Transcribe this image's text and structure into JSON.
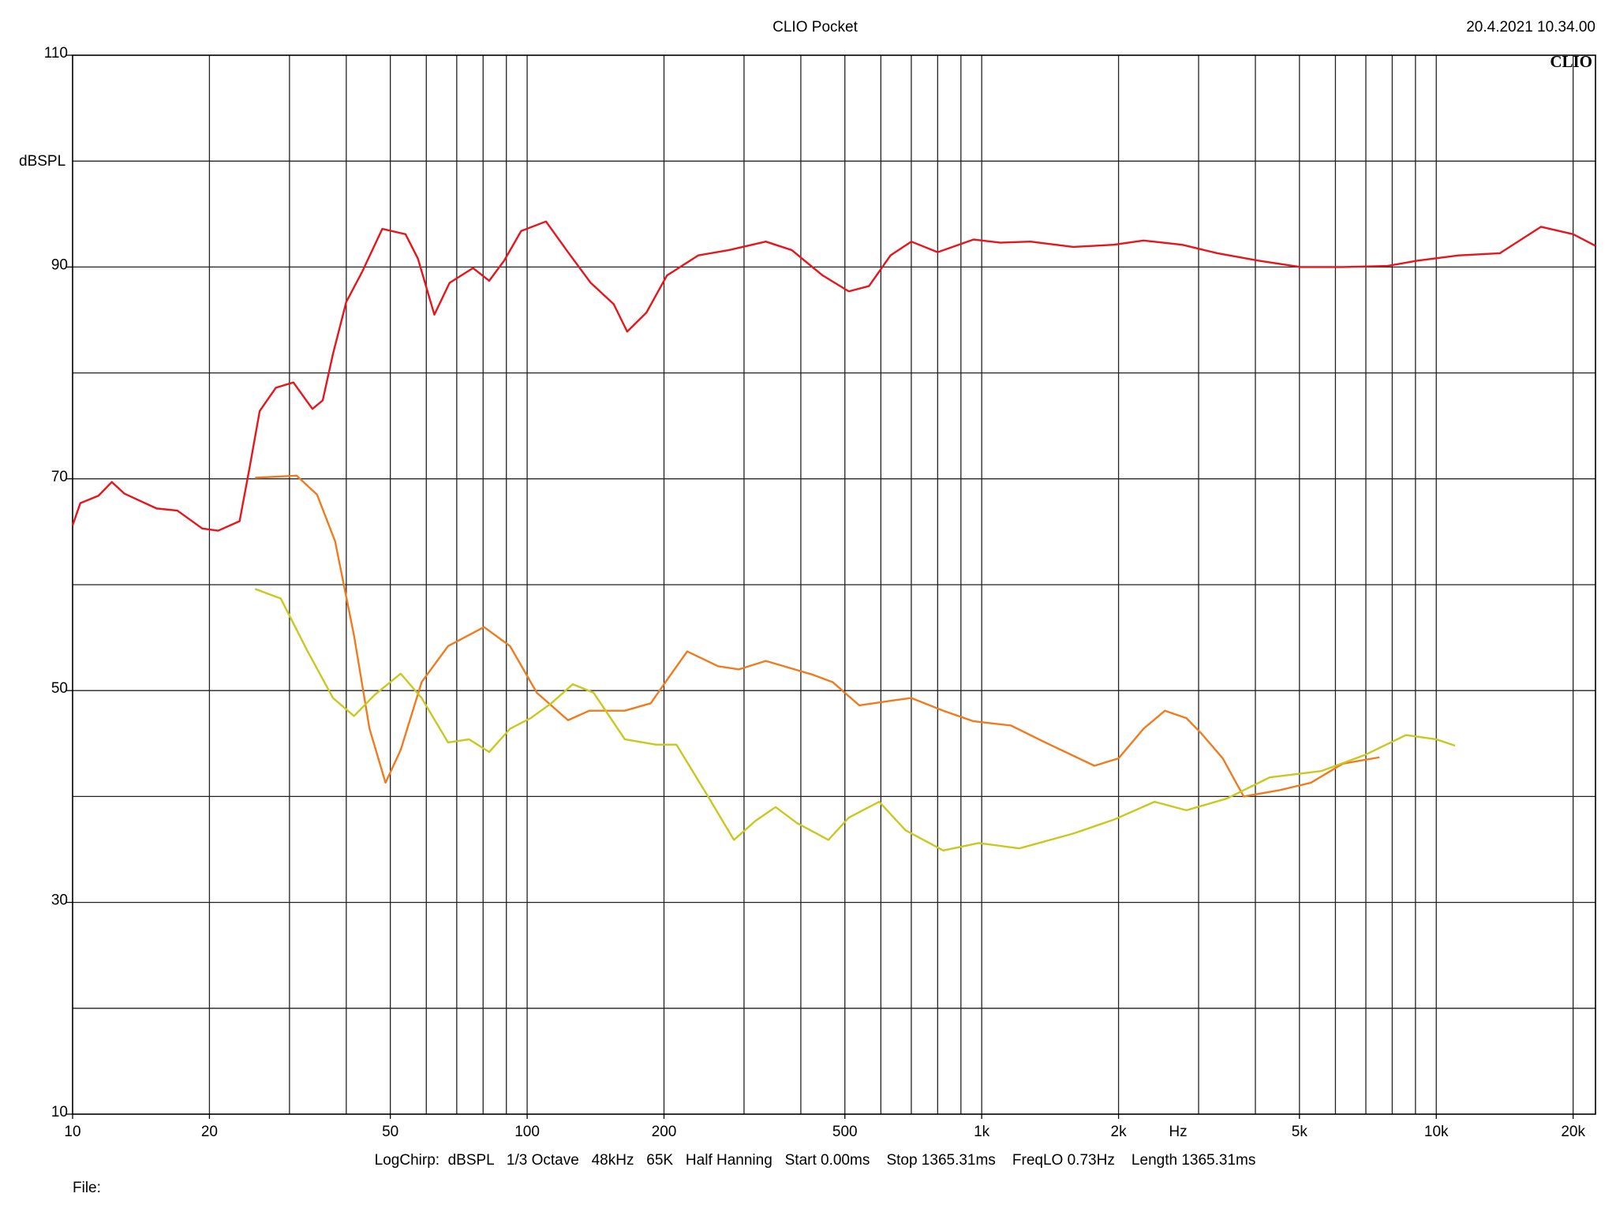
{
  "chart_data": {
    "type": "line",
    "title": "CLIO Pocket",
    "timestamp": "20.4.2021 10.34.00",
    "logo": "CLIO",
    "y_label": "dBSPL",
    "x_label": "Hz",
    "settings": "LogChirp:  dBSPL   1/3 Octave   48kHz   65K   Half Hanning   Start 0.00ms    Stop 1365.31ms    FreqLO 0.73Hz    Length 1365.31ms",
    "file_label": "File:",
    "x_log": true,
    "grid": true,
    "xlim": [
      10,
      22400
    ],
    "ylim": [
      10,
      110
    ],
    "xticks": [
      10,
      20,
      50,
      100,
      200,
      500,
      {
        "value": 1000,
        "label": "1k"
      },
      {
        "value": 2000,
        "label": "2k"
      },
      {
        "value": 5000,
        "label": "5k"
      },
      {
        "value": 10000,
        "label": "10k"
      },
      {
        "value": 20000,
        "label": "20k"
      }
    ],
    "yticks": [
      10,
      30,
      50,
      70,
      90,
      110
    ],
    "xgrid": [
      20,
      30,
      40,
      50,
      60,
      70,
      80,
      90,
      100,
      200,
      300,
      400,
      500,
      600,
      700,
      800,
      900,
      1000,
      2000,
      3000,
      4000,
      5000,
      6000,
      7000,
      8000,
      9000,
      10000,
      20000
    ],
    "ygrid": [
      20,
      30,
      40,
      50,
      60,
      70,
      80,
      90,
      100
    ],
    "series": [
      {
        "color": "#e8141c",
        "x": [
          10,
          10.4,
          11.4,
          12.2,
          13,
          15.3,
          17,
          19.3,
          20.9,
          23.3,
          24.5,
          25.8,
          28,
          30.6,
          33.7,
          35.5,
          37.4,
          40,
          43.3,
          48,
          54,
          57.5,
          62.5,
          67.5,
          76,
          82.5,
          89,
          97,
          110,
          123,
          138,
          155,
          166,
          183,
          203,
          238,
          278,
          335,
          382,
          447,
          510,
          565,
          630,
          700,
          800,
          960,
          1100,
          1280,
          1590,
          1950,
          2270,
          2760,
          3300,
          4060,
          5030,
          6230,
          7800,
          9100,
          11200,
          13800,
          17000,
          20000,
          22400
        ],
        "values": [
          65.6,
          67.7,
          68.4,
          69.7,
          68.6,
          67.2,
          67,
          65.3,
          65.1,
          66,
          71,
          76.4,
          78.6,
          79.1,
          76.6,
          77.4,
          81.8,
          86.7,
          89.5,
          93.6,
          93.1,
          90.8,
          85.5,
          88.5,
          89.9,
          88.7,
          90.6,
          93.4,
          94.3,
          91.4,
          88.5,
          86.5,
          83.9,
          85.7,
          89.2,
          91.1,
          91.6,
          92.4,
          91.6,
          89.2,
          87.7,
          88.2,
          91.1,
          92.4,
          91.4,
          92.6,
          92.3,
          92.4,
          91.9,
          92.1,
          92.5,
          92.1,
          91.3,
          90.6,
          90,
          90,
          90.1,
          90.6,
          91.1,
          91.3,
          93.8,
          93.1,
          92
        ]
      },
      {
        "color": "#f07b1f",
        "x": [
          25.2,
          31.1,
          34.5,
          37.8,
          41.6,
          45,
          48.8,
          52.7,
          58.6,
          67,
          80.4,
          91.7,
          105,
          123,
          137,
          164,
          187,
          203,
          225,
          263,
          292,
          335,
          425,
          470,
          538,
          645,
          700,
          823,
          960,
          1160,
          1380,
          1770,
          2000,
          2270,
          2530,
          2820,
          3050,
          3390,
          3770,
          4530,
          5300,
          6230,
          7500
        ],
        "values": [
          70.1,
          70.3,
          68.5,
          64.1,
          55.2,
          46.4,
          41.3,
          44.4,
          50.8,
          54.2,
          56,
          54.2,
          49.8,
          47.2,
          48.1,
          48.1,
          48.8,
          51,
          53.7,
          52.3,
          52,
          52.8,
          51.5,
          50.8,
          48.6,
          49.1,
          49.3,
          48.1,
          47.1,
          46.7,
          45.1,
          42.9,
          43.6,
          46.4,
          48.1,
          47.4,
          45.9,
          43.6,
          40,
          40.6,
          41.3,
          43.1,
          43.7
        ]
      },
      {
        "color": "#c8c81e",
        "x": [
          25.2,
          28.7,
          32.8,
          37.4,
          41.6,
          46.2,
          52.7,
          58.6,
          67,
          74.5,
          82.5,
          91.7,
          101.8,
          113,
          126,
          140,
          164,
          192,
          213,
          250,
          285,
          318,
          352,
          392,
          460,
          510,
          595,
          680,
          823,
          985,
          1210,
          1590,
          1950,
          2400,
          2820,
          3460,
          4300,
          5580,
          6950,
          8580,
          10000,
          11000
        ],
        "values": [
          59.6,
          58.7,
          53.8,
          49.3,
          47.6,
          49.6,
          51.6,
          49.3,
          45.1,
          45.4,
          44.2,
          46.4,
          47.4,
          48.8,
          50.6,
          49.8,
          45.4,
          44.9,
          44.9,
          40,
          35.9,
          37.7,
          39,
          37.5,
          35.9,
          38,
          39.5,
          36.8,
          34.9,
          35.6,
          35.1,
          36.5,
          37.8,
          39.5,
          38.7,
          39.8,
          41.8,
          42.4,
          43.9,
          45.8,
          45.4,
          44.8
        ]
      }
    ]
  }
}
